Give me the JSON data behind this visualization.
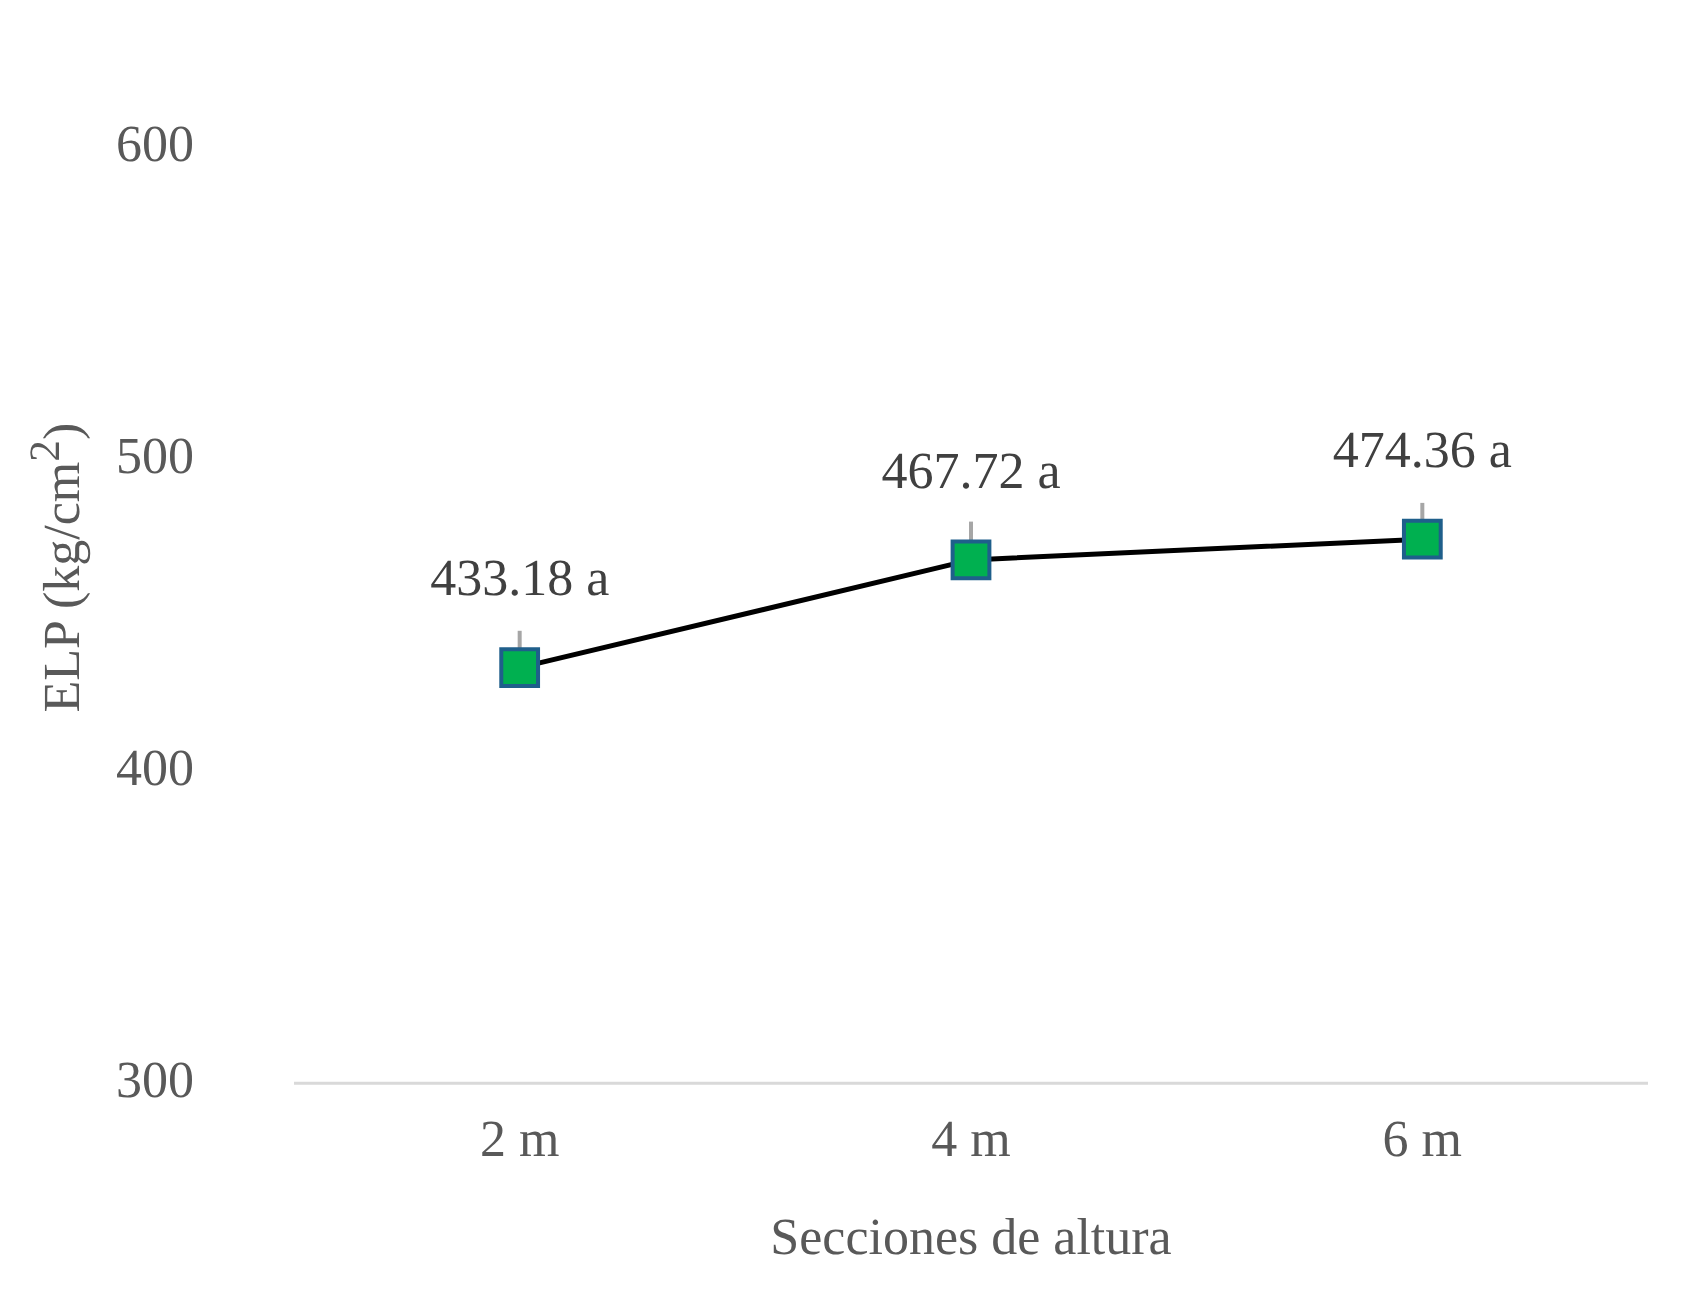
{
  "chart_data": {
    "type": "line",
    "xlabel": "Secciones de altura",
    "ylabel": "ELP (kg/cm$^{2}$)",
    "categories": [
      "2 m",
      "4 m",
      "6 m"
    ],
    "series": [
      {
        "color": "#000000",
        "values": [
          433.18,
          467.72,
          474.36
        ],
        "errors": [
          [
            433.18,
            445
          ],
          [
            467.72,
            480
          ],
          [
            474.36,
            486
          ]
        ],
        "value_labels": [
          "433.18 a",
          "467.72 a",
          "474.36 a"
        ]
      }
    ],
    "ylim": [
      300,
      600
    ],
    "yticks": [
      300,
      400,
      500,
      600
    ],
    "grid": false,
    "legend": false,
    "marker": "square",
    "line_style": "solid"
  }
}
